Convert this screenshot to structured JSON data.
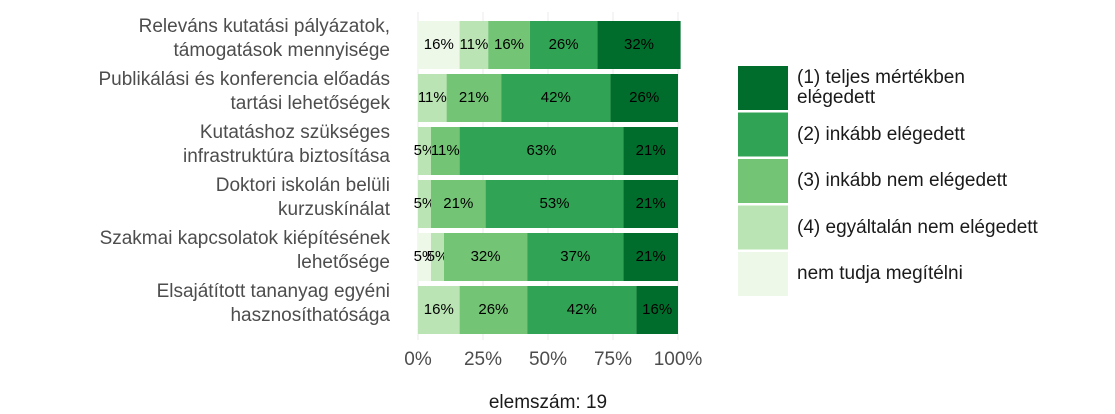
{
  "chart_data": {
    "type": "stacked_barh",
    "categories": [
      "Releváns kutatási pályázatok,\ntámogatások mennyisége",
      "Publikálási és konferencia előadás\ntartási lehetőségek",
      "Kutatáshoz szükséges\ninfrastruktúra biztosítása",
      "Doktori iskolán belüli\nkurzuskínálat",
      "Szakmai kapcsolatok kiépítésének\nlehetősége",
      "Elsajátított tananyag egyéni\nhasznosíthatósága"
    ],
    "series": [
      {
        "name": "(1) teljes mértékben\nelégedett",
        "color": "#006d2c",
        "values": [
          32,
          26,
          21,
          21,
          21,
          16
        ],
        "value_labels": [
          "32%",
          "26%",
          "21%",
          "21%",
          "21%",
          "16%"
        ]
      },
      {
        "name": "(2) inkább elégedett",
        "color": "#31a354",
        "values": [
          26,
          42,
          63,
          53,
          37,
          42
        ],
        "value_labels": [
          "26%",
          "42%",
          "63%",
          "53%",
          "37%",
          "42%"
        ]
      },
      {
        "name": "(3) inkább nem elégedett",
        "color": "#74c476",
        "values": [
          16,
          21,
          11,
          21,
          32,
          26
        ],
        "value_labels": [
          "16%",
          "21%",
          "11%",
          "21%",
          "32%",
          "26%"
        ]
      },
      {
        "name": "(4) egyáltalán nem elégedett",
        "color": "#bae4b3",
        "values": [
          11,
          11,
          5,
          5,
          5,
          16
        ],
        "value_labels": [
          "11%",
          "11%",
          "5%",
          "5%",
          "5%",
          "16%"
        ]
      },
      {
        "name": "nem tudja megítélni",
        "color": "#edf8e9",
        "values": [
          16,
          0,
          0,
          0,
          5,
          0
        ],
        "value_labels": [
          "16%",
          null,
          null,
          null,
          "5%",
          null
        ]
      }
    ],
    "xlim": [
      0,
      100
    ],
    "xticks": [
      {
        "value": 0,
        "label": "0%"
      },
      {
        "value": 25,
        "label": "25%"
      },
      {
        "value": 50,
        "label": "50%"
      },
      {
        "value": 75,
        "label": "75%"
      },
      {
        "value": 100,
        "label": "100%"
      }
    ],
    "xlabel": "elemszám: 19",
    "grid": true
  }
}
